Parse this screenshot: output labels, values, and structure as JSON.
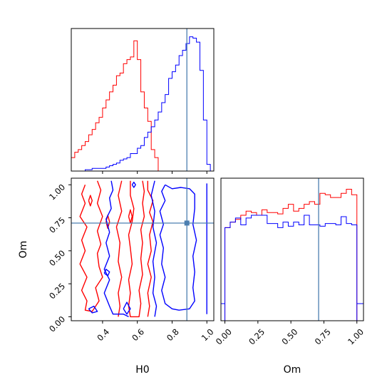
{
  "chart_data": [
    {
      "panel": "H0 marginal",
      "type": "histogram",
      "xlim": [
        0.22,
        1.04
      ],
      "truth": 0.885,
      "series": [
        {
          "color": "#ff0000",
          "bin_edges": [
            0.22,
            0.24,
            0.26,
            0.28,
            0.3,
            0.32,
            0.34,
            0.36,
            0.38,
            0.4,
            0.42,
            0.44,
            0.46,
            0.48,
            0.5,
            0.52,
            0.54,
            0.56,
            0.58,
            0.6,
            0.62,
            0.64,
            0.66,
            0.68,
            0.7,
            0.72,
            0.74
          ],
          "values": [
            10,
            14,
            16,
            19,
            22,
            27,
            31,
            36,
            40,
            47,
            53,
            59,
            64,
            71,
            73,
            80,
            83,
            85,
            97,
            83,
            59,
            47,
            37,
            16,
            10,
            0
          ]
        },
        {
          "color": "#0000ff",
          "bin_edges": [
            0.22,
            0.24,
            0.26,
            0.28,
            0.3,
            0.32,
            0.34,
            0.36,
            0.38,
            0.4,
            0.42,
            0.44,
            0.46,
            0.48,
            0.5,
            0.52,
            0.54,
            0.56,
            0.58,
            0.6,
            0.62,
            0.64,
            0.66,
            0.68,
            0.7,
            0.72,
            0.74,
            0.76,
            0.78,
            0.8,
            0.82,
            0.84,
            0.86,
            0.88,
            0.9,
            0.92,
            0.94,
            0.96,
            0.98,
            1.0,
            1.02,
            1.04
          ],
          "values": [
            0,
            0,
            0,
            0,
            1,
            1,
            2,
            2,
            2,
            2,
            3,
            4,
            5,
            6,
            8,
            9,
            10,
            13,
            13,
            17,
            19,
            25,
            29,
            33,
            38,
            44,
            51,
            57,
            69,
            74,
            79,
            86,
            90,
            95,
            100,
            99,
            96,
            75,
            38,
            5,
            0
          ]
        }
      ]
    },
    {
      "panel": "H0 vs Om contours",
      "type": "contour",
      "xlabel": "H0",
      "ylabel": "Om",
      "xlim": [
        0.22,
        1.04
      ],
      "ylim": [
        -0.03,
        1.05
      ],
      "xticks": [
        "0.4",
        "0.6",
        "0.8",
        "1.0"
      ],
      "yticks": [
        "0.00",
        "0.25",
        "0.50",
        "0.75",
        "1.00"
      ],
      "truth": {
        "H0": 0.885,
        "Om": 0.71
      },
      "contours": [
        {
          "color": "#ff0000",
          "level": "outer",
          "points": [
            [
              0.3,
              1.0
            ],
            [
              0.28,
              0.93
            ],
            [
              0.3,
              0.86
            ],
            [
              0.27,
              0.76
            ],
            [
              0.31,
              0.68
            ],
            [
              0.28,
              0.58
            ],
            [
              0.3,
              0.5
            ],
            [
              0.27,
              0.4
            ],
            [
              0.31,
              0.3
            ],
            [
              0.28,
              0.2
            ],
            [
              0.31,
              0.12
            ],
            [
              0.3,
              0.05
            ],
            [
              0.34,
              0.04
            ],
            [
              0.38,
              0.12
            ],
            [
              0.36,
              0.22
            ],
            [
              0.4,
              0.3
            ],
            [
              0.38,
              0.38
            ],
            [
              0.37,
              0.48
            ],
            [
              0.39,
              0.55
            ],
            [
              0.37,
              0.65
            ],
            [
              0.4,
              0.76
            ],
            [
              0.37,
              0.86
            ],
            [
              0.39,
              0.96
            ],
            [
              0.37,
              1.03
            ]
          ]
        },
        {
          "color": "#ff0000",
          "level": "outer",
          "points": [
            [
              0.51,
              1.03
            ],
            [
              0.49,
              0.92
            ],
            [
              0.51,
              0.8
            ],
            [
              0.48,
              0.68
            ],
            [
              0.5,
              0.56
            ],
            [
              0.49,
              0.42
            ],
            [
              0.51,
              0.3
            ],
            [
              0.49,
              0.18
            ],
            [
              0.5,
              0.08
            ],
            [
              0.49,
              0.0
            ]
          ]
        },
        {
          "color": "#ff0000",
          "level": "outer",
          "points": [
            [
              0.66,
              1.03
            ],
            [
              0.66,
              0.96
            ],
            [
              0.69,
              0.88
            ],
            [
              0.67,
              0.79
            ],
            [
              0.69,
              0.72
            ],
            [
              0.67,
              0.62
            ],
            [
              0.68,
              0.5
            ],
            [
              0.66,
              0.4
            ],
            [
              0.68,
              0.3
            ],
            [
              0.66,
              0.18
            ],
            [
              0.67,
              0.08
            ],
            [
              0.66,
              0.0
            ]
          ]
        },
        {
          "color": "#ff0000",
          "level": "inner",
          "points": [
            [
              0.56,
              1.03
            ],
            [
              0.56,
              0.92
            ],
            [
              0.58,
              0.82
            ],
            [
              0.57,
              0.72
            ],
            [
              0.55,
              0.62
            ],
            [
              0.56,
              0.52
            ],
            [
              0.57,
              0.4
            ],
            [
              0.55,
              0.28
            ],
            [
              0.56,
              0.18
            ],
            [
              0.55,
              0.08
            ],
            [
              0.56,
              0.0
            ],
            [
              0.61,
              0.0
            ],
            [
              0.62,
              0.1
            ],
            [
              0.61,
              0.2
            ],
            [
              0.63,
              0.32
            ],
            [
              0.62,
              0.44
            ],
            [
              0.63,
              0.56
            ],
            [
              0.62,
              0.66
            ],
            [
              0.64,
              0.76
            ],
            [
              0.63,
              0.86
            ],
            [
              0.64,
              0.95
            ],
            [
              0.63,
              1.03
            ]
          ]
        },
        {
          "color": "#ff0000",
          "level": "island",
          "points": [
            [
              0.32,
              0.88
            ],
            [
              0.33,
              0.92
            ],
            [
              0.34,
              0.88
            ],
            [
              0.33,
              0.84
            ],
            [
              0.32,
              0.88
            ]
          ]
        },
        {
          "color": "#ff0000",
          "level": "island",
          "points": [
            [
              0.42,
              0.72
            ],
            [
              0.43,
              0.77
            ],
            [
              0.44,
              0.72
            ],
            [
              0.43,
              0.67
            ],
            [
              0.42,
              0.72
            ]
          ]
        },
        {
          "color": "#ff0000",
          "level": "island",
          "points": [
            [
              0.55,
              0.76
            ],
            [
              0.56,
              0.81
            ],
            [
              0.57,
              0.76
            ],
            [
              0.56,
              0.71
            ],
            [
              0.55,
              0.76
            ]
          ]
        },
        {
          "color": "#0000ff",
          "level": "outer",
          "points": [
            [
              0.45,
              1.03
            ],
            [
              0.46,
              0.96
            ],
            [
              0.44,
              0.9
            ],
            [
              0.45,
              0.82
            ],
            [
              0.42,
              0.74
            ],
            [
              0.44,
              0.64
            ],
            [
              0.42,
              0.56
            ],
            [
              0.44,
              0.46
            ],
            [
              0.41,
              0.36
            ],
            [
              0.44,
              0.28
            ],
            [
              0.41,
              0.18
            ],
            [
              0.44,
              0.08
            ],
            [
              0.46,
              0.02
            ],
            [
              0.52,
              0.02
            ],
            [
              0.55,
              0.0
            ]
          ]
        },
        {
          "color": "#0000ff",
          "level": "inner",
          "points": [
            [
              0.76,
              1.0
            ],
            [
              0.8,
              0.97
            ],
            [
              0.85,
              0.98
            ],
            [
              0.9,
              0.97
            ],
            [
              0.93,
              0.93
            ],
            [
              0.93,
              0.82
            ],
            [
              0.92,
              0.7
            ],
            [
              0.94,
              0.58
            ],
            [
              0.92,
              0.46
            ],
            [
              0.93,
              0.34
            ],
            [
              0.92,
              0.22
            ],
            [
              0.93,
              0.12
            ],
            [
              0.9,
              0.06
            ],
            [
              0.84,
              0.05
            ],
            [
              0.8,
              0.06
            ],
            [
              0.76,
              0.1
            ],
            [
              0.74,
              0.2
            ],
            [
              0.76,
              0.3
            ],
            [
              0.74,
              0.4
            ],
            [
              0.75,
              0.52
            ],
            [
              0.73,
              0.62
            ],
            [
              0.75,
              0.7
            ],
            [
              0.73,
              0.8
            ],
            [
              0.76,
              0.88
            ],
            [
              0.74,
              0.95
            ],
            [
              0.76,
              1.0
            ]
          ]
        },
        {
          "color": "#0000ff",
          "level": "outer",
          "points": [
            [
              0.7,
              1.03
            ],
            [
              0.68,
              0.92
            ],
            [
              0.7,
              0.8
            ],
            [
              0.69,
              0.68
            ],
            [
              0.71,
              0.56
            ],
            [
              0.69,
              0.42
            ],
            [
              0.7,
              0.3
            ],
            [
              0.69,
              0.18
            ],
            [
              0.71,
              0.08
            ],
            [
              0.7,
              0.0
            ]
          ]
        },
        {
          "color": "#0000ff",
          "level": "outer",
          "points": [
            [
              1.0,
              1.01
            ],
            [
              1.0,
              0.6
            ],
            [
              1.0,
              0.02
            ]
          ]
        },
        {
          "color": "#0000ff",
          "level": "island",
          "points": [
            [
              0.41,
              0.33
            ],
            [
              0.42,
              0.36
            ],
            [
              0.44,
              0.34
            ],
            [
              0.43,
              0.31
            ],
            [
              0.41,
              0.33
            ]
          ]
        },
        {
          "color": "#0000ff",
          "level": "island",
          "points": [
            [
              0.32,
              0.06
            ],
            [
              0.35,
              0.08
            ],
            [
              0.37,
              0.04
            ],
            [
              0.34,
              0.03
            ],
            [
              0.32,
              0.06
            ]
          ]
        },
        {
          "color": "#0000ff",
          "level": "island",
          "points": [
            [
              0.52,
              0.06
            ],
            [
              0.54,
              0.11
            ],
            [
              0.56,
              0.06
            ],
            [
              0.54,
              0.02
            ],
            [
              0.52,
              0.06
            ]
          ]
        },
        {
          "color": "#0000ff",
          "level": "island",
          "points": [
            [
              0.57,
              1.0
            ],
            [
              0.58,
              1.02
            ],
            [
              0.59,
              1.0
            ],
            [
              0.58,
              0.98
            ],
            [
              0.57,
              1.0
            ]
          ]
        }
      ]
    },
    {
      "panel": "Om marginal",
      "type": "histogram",
      "xlabel": "Om",
      "xlim": [
        -0.03,
        1.05
      ],
      "xticks": [
        "0.00",
        "0.25",
        "0.50",
        "0.75",
        "1.00"
      ],
      "truth": 0.71,
      "series": [
        {
          "color": "#ff0000",
          "bin_edges": [
            0.0,
            0.04,
            0.08,
            0.12,
            0.16,
            0.2,
            0.24,
            0.28,
            0.32,
            0.36,
            0.4,
            0.44,
            0.48,
            0.52,
            0.56,
            0.6,
            0.64,
            0.68,
            0.72,
            0.76,
            0.8,
            0.84,
            0.88,
            0.92,
            0.96,
            1.0
          ],
          "values": [
            68,
            72,
            74,
            77,
            80,
            79,
            77,
            81,
            79,
            79,
            78,
            82,
            85,
            80,
            82,
            85,
            87,
            85,
            93,
            92,
            90,
            90,
            93,
            96,
            92
          ]
        },
        {
          "color": "#0000ff",
          "bin_edges": [
            0.0,
            0.04,
            0.08,
            0.12,
            0.16,
            0.2,
            0.24,
            0.28,
            0.32,
            0.36,
            0.4,
            0.44,
            0.48,
            0.52,
            0.56,
            0.6,
            0.64,
            0.68,
            0.72,
            0.76,
            0.8,
            0.84,
            0.88,
            0.92,
            0.96,
            1.0
          ],
          "values": [
            68,
            72,
            75,
            70,
            75,
            77,
            77,
            77,
            71,
            71,
            68,
            72,
            69,
            72,
            70,
            77,
            70,
            70,
            69,
            71,
            71,
            70,
            76,
            71,
            70
          ]
        }
      ]
    }
  ]
}
